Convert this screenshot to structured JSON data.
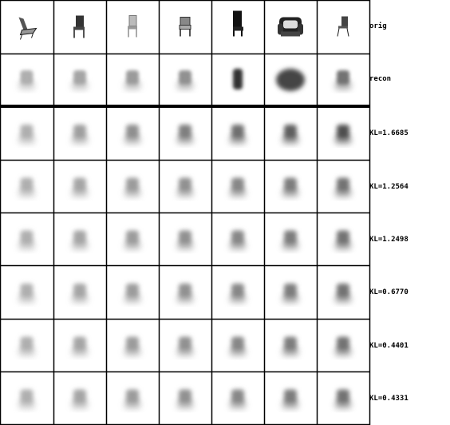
{
  "rows": [
    {
      "label": "orig",
      "kind": "orig"
    },
    {
      "label": "recon",
      "kind": "recon"
    },
    {
      "label": "KL=1.6685",
      "kind": "sample"
    },
    {
      "label": "KL=1.2564",
      "kind": "sample"
    },
    {
      "label": "KL=1.2498",
      "kind": "sample"
    },
    {
      "label": "KL=0.6770",
      "kind": "sample"
    },
    {
      "label": "KL=0.4401",
      "kind": "sample"
    },
    {
      "label": "KL=0.4331",
      "kind": "sample"
    }
  ],
  "columns": 7,
  "originals": [
    "chair-tilted-icon",
    "chair-dark-icon",
    "chair-light-icon",
    "chair-side-icon",
    "chair-tall-black-icon",
    "armchair-icon",
    "chair-small-icon"
  ]
}
